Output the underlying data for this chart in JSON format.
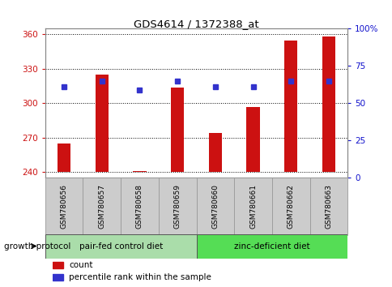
{
  "title": "GDS4614 / 1372388_at",
  "samples": [
    "GSM780656",
    "GSM780657",
    "GSM780658",
    "GSM780659",
    "GSM780660",
    "GSM780661",
    "GSM780662",
    "GSM780663"
  ],
  "count_values": [
    265,
    325,
    241,
    314,
    274,
    297,
    355,
    358
  ],
  "percentile_values": [
    61,
    65,
    59,
    65,
    61,
    61,
    65,
    65
  ],
  "ylim_left": [
    235,
    365
  ],
  "ylim_right": [
    0,
    100
  ],
  "yticks_left": [
    240,
    270,
    300,
    330,
    360
  ],
  "yticks_right": [
    0,
    25,
    50,
    75,
    100
  ],
  "yticklabels_right": [
    "0",
    "25",
    "50",
    "75",
    "100%"
  ],
  "bar_color": "#cc1111",
  "dot_color": "#3333cc",
  "left_label_color": "#cc1111",
  "right_label_color": "#1111cc",
  "group1_label": "pair-fed control diet",
  "group2_label": "zinc-deficient diet",
  "group1_color": "#aaddaa",
  "group2_color": "#55dd55",
  "protocol_label": "growth protocol",
  "legend_count_label": "count",
  "legend_pct_label": "percentile rank within the sample",
  "bar_width": 0.35,
  "bar_bottom": 240,
  "label_bg_color": "#cccccc",
  "label_edge_color": "#999999",
  "spine_color": "#888888"
}
